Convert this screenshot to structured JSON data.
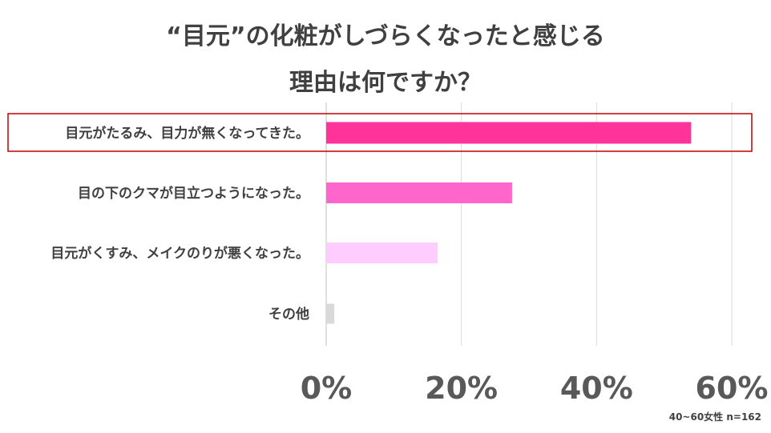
{
  "title_lines": [
    "“目元”の化粧がしづらくなったと感じる",
    "理由は何ですか？"
  ],
  "footnote": "40~60女性 n=162",
  "colors": {
    "highlight_box": "#c00000",
    "gridline": "#d9d9d9",
    "bars": [
      "#ff3399",
      "#ff66cc",
      "#ffccff",
      "#d9d9d9"
    ]
  },
  "chart_data": {
    "type": "bar",
    "orientation": "horizontal",
    "categories": [
      "目元がたるみ、目力が無くなってきた。",
      "目の下のクマが目立つようになった。",
      "目元がくすみ、メイクのりが悪くなった。",
      "その他"
    ],
    "values": [
      54,
      27.5,
      16.5,
      1.2
    ],
    "unit": "%",
    "xlim": [
      0,
      60
    ],
    "xticks": [
      "0%",
      "20%",
      "40%",
      "60%"
    ],
    "xtick_values": [
      0,
      20,
      40,
      60
    ],
    "grid": true,
    "highlighted_category": "目元がたるみ、目力が無くなってきた。"
  }
}
